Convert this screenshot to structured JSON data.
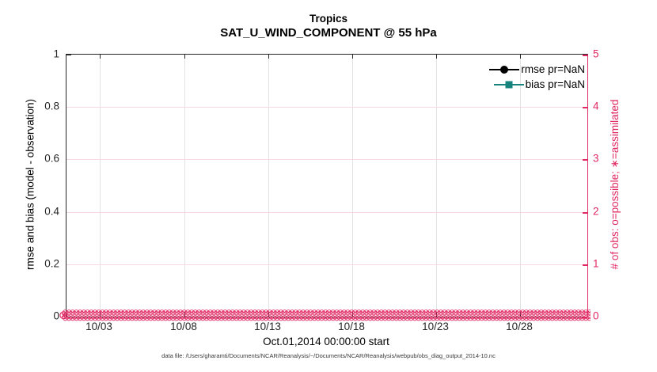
{
  "figure": {
    "title_line1": "Tropics",
    "title_line2": "SAT_U_WIND_COMPONENT @ 55 hPa",
    "xlabel": "Oct.01,2014 00:00:00 start",
    "ylabel_left": "rmse and bias (model - observation)",
    "ylabel_right": "# of obs: o=possible; ∗=assimilated",
    "footer": "data file: /Users/gharamti/Documents/NCAR/Reanalysis/~/Documents/NCAR/Reanalysis/webpub/obs_diag_output_2014-10.nc"
  },
  "colors": {
    "pink": "#E02862",
    "pink_grid": "#F7D9E3",
    "teal": "#17837D",
    "black": "#000000",
    "frame": "#262626",
    "grid_gray": "#E2E2E2"
  },
  "chart_data": {
    "type": "line",
    "title": "Tropics",
    "subtitle": "SAT_U_WIND_COMPONENT @ 55 hPa",
    "xlabel": "Oct.01,2014 00:00:00 start",
    "x_axis": {
      "range_days": [
        0,
        31
      ],
      "tick_days": [
        2,
        7,
        12,
        17,
        22,
        27
      ],
      "tick_labels": [
        "10/03",
        "10/08",
        "10/13",
        "10/18",
        "10/23",
        "10/28"
      ]
    },
    "y_left": {
      "label": "rmse and bias (model - observation)",
      "lim": [
        0,
        1
      ],
      "tick_values": [
        0,
        0.2,
        0.4,
        0.6,
        0.8,
        1
      ],
      "tick_labels": [
        "0",
        "0.2",
        "0.4",
        "0.6",
        "0.8",
        "1"
      ]
    },
    "y_right": {
      "label": "# of obs: o=possible; ∗=assimilated",
      "lim": [
        0,
        5
      ],
      "tick_values": [
        0,
        1,
        2,
        3,
        4,
        5
      ],
      "tick_labels": [
        "0",
        "1",
        "2",
        "3",
        "4",
        "5"
      ]
    },
    "grid": true,
    "series": [
      {
        "name": "rmse pr=NaN",
        "axis": "left",
        "marker": "filled-circle",
        "color": "#000000",
        "values": "NaN - no curve drawn"
      },
      {
        "name": "bias pr=NaN",
        "axis": "left",
        "marker": "filled-square",
        "color": "#17837D",
        "values": "NaN - no curve drawn"
      },
      {
        "name": "possible obs (o)",
        "axis": "right",
        "marker": "o",
        "color": "#E02862",
        "constant_value": 0
      },
      {
        "name": "assimilated obs (∗)",
        "axis": "right",
        "marker": "x",
        "color": "#E02862",
        "constant_value": 0
      }
    ],
    "legend": {
      "position": "top-right-inside",
      "box": false,
      "entries": [
        {
          "label": "rmse pr=NaN",
          "color": "#000000",
          "marker": "circle"
        },
        {
          "label": "bias pr=NaN",
          "color": "#17837D",
          "marker": "square"
        }
      ]
    },
    "obs_band": {
      "glyph": "⊗",
      "rows": 2,
      "per_row": 150,
      "plotted_at": 0
    }
  }
}
